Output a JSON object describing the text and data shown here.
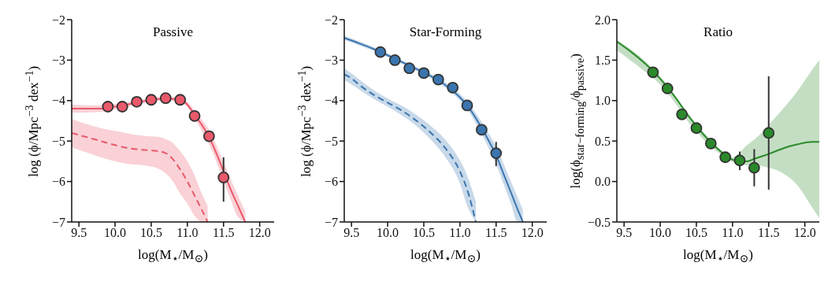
{
  "chart_data": [
    {
      "type": "scatter",
      "title": "Passive",
      "xlabel": "log(M$_{⋆}$/M$_{⊙}$)",
      "ylabel": "log (ϕ/Mpc$^{−3}$ dex$^{−1}$)",
      "xlim": [
        9.4,
        12.2
      ],
      "xticks": [
        9.5,
        {
          "value": 10.0,
          "label": "10.0"
        },
        10.5,
        {
          "value": 11.0,
          "label": "11.0"
        },
        11.5,
        {
          "value": 12.0,
          "label": "12.0"
        }
      ],
      "ylim": [
        -7,
        -2
      ],
      "yticks": [
        {
          "value": -7,
          "label": "−7"
        },
        {
          "value": -6,
          "label": "−6"
        },
        {
          "value": -5,
          "label": "−5"
        },
        {
          "value": -4,
          "label": "−4"
        },
        {
          "value": -3,
          "label": "−3"
        },
        {
          "value": -2,
          "label": "−2"
        }
      ],
      "grid": false,
      "legend": false,
      "series": [
        {
          "type": "line",
          "line_style": "dashed",
          "color": "#e8596b",
          "x": [
            9.4,
            9.6,
            9.8,
            10.0,
            10.2,
            10.4,
            10.6,
            10.7,
            10.8,
            10.9,
            11.0,
            11.1,
            11.2,
            11.28
          ],
          "values": [
            -4.8,
            -4.9,
            -5.0,
            -5.1,
            -5.18,
            -5.22,
            -5.25,
            -5.3,
            -5.45,
            -5.7,
            -6.0,
            -6.35,
            -6.7,
            -7.0
          ],
          "lower": [
            -5.15,
            -5.28,
            -5.4,
            -5.5,
            -5.57,
            -5.6,
            -5.68,
            -5.8,
            -6.0,
            -6.3,
            -6.55,
            -6.85,
            -7.0,
            -7.0
          ],
          "upper": [
            -4.45,
            -4.58,
            -4.68,
            -4.75,
            -4.82,
            -4.87,
            -4.9,
            -4.95,
            -5.05,
            -5.25,
            -5.5,
            -5.85,
            -6.3,
            -6.6
          ]
        },
        {
          "type": "line",
          "line_style": "solid",
          "color": "#e8596b",
          "x": [
            9.4,
            9.8,
            10.0,
            10.3,
            10.5,
            10.7,
            10.9,
            11.0,
            11.1,
            11.2,
            11.3,
            11.4,
            11.5,
            11.6,
            11.7,
            11.8
          ],
          "values": [
            -4.2,
            -4.2,
            -4.15,
            -4.05,
            -3.98,
            -3.95,
            -3.98,
            -4.1,
            -4.35,
            -4.6,
            -4.9,
            -5.3,
            -5.75,
            -6.2,
            -6.6,
            -7.0
          ],
          "lower": [
            -4.3,
            -4.28,
            -4.22,
            -4.1,
            -4.03,
            -4.0,
            -4.04,
            -4.17,
            -4.45,
            -4.75,
            -5.08,
            -5.5,
            -5.98,
            -6.45,
            -6.88,
            -7.0
          ],
          "upper": [
            -4.1,
            -4.12,
            -4.08,
            -4.0,
            -3.93,
            -3.9,
            -3.92,
            -4.03,
            -4.25,
            -4.47,
            -4.72,
            -5.1,
            -5.52,
            -5.95,
            -6.35,
            -6.75
          ]
        },
        {
          "type": "scatter",
          "marker": "circle",
          "color": "#e8596b",
          "x": [
            9.9,
            10.1,
            10.3,
            10.5,
            10.7,
            10.9,
            11.1,
            11.3,
            11.5
          ],
          "values": [
            -4.15,
            -4.15,
            -4.03,
            -3.98,
            -3.94,
            -3.98,
            -4.38,
            -4.88,
            -5.9
          ],
          "errors": [
            null,
            null,
            null,
            null,
            null,
            null,
            null,
            null,
            [
              -6.5,
              -5.4
            ]
          ]
        }
      ]
    },
    {
      "type": "scatter",
      "title": "Star-Forming",
      "xlabel": "log(M$_{⋆}$/M$_{⊙}$)",
      "ylabel": "log (ϕ/Mpc$^{−3}$ dex$^{−1}$)",
      "xlim": [
        9.4,
        12.2
      ],
      "xticks": [
        9.5,
        {
          "value": 10.0,
          "label": "10.0"
        },
        10.5,
        {
          "value": 11.0,
          "label": "11.0"
        },
        11.5,
        {
          "value": 12.0,
          "label": "12.0"
        }
      ],
      "ylim": [
        -7,
        -2
      ],
      "yticks": [
        {
          "value": -7,
          "label": "−7"
        },
        {
          "value": -6,
          "label": "−6"
        },
        {
          "value": -5,
          "label": "−5"
        },
        {
          "value": -4,
          "label": "−4"
        },
        {
          "value": -3,
          "label": "−3"
        },
        {
          "value": -2,
          "label": "−2"
        }
      ],
      "grid": false,
      "legend": false,
      "series": [
        {
          "type": "line",
          "line_style": "solid",
          "color": "#3b75af",
          "x": [
            9.4,
            9.6,
            9.8,
            10.0,
            10.2,
            10.4,
            10.6,
            10.8,
            11.0,
            11.1,
            11.2,
            11.3,
            11.4,
            11.5,
            11.6,
            11.7,
            11.8,
            11.87
          ],
          "values": [
            -2.45,
            -2.58,
            -2.72,
            -2.88,
            -3.05,
            -3.22,
            -3.4,
            -3.62,
            -3.92,
            -4.12,
            -4.38,
            -4.68,
            -5.0,
            -5.35,
            -5.8,
            -6.25,
            -6.7,
            -7.0
          ],
          "lower": [
            -2.5,
            -2.63,
            -2.77,
            -2.93,
            -3.1,
            -3.27,
            -3.46,
            -3.69,
            -4.0,
            -4.22,
            -4.5,
            -4.83,
            -5.18,
            -5.57,
            -6.05,
            -6.52,
            -7.0,
            -7.0
          ],
          "upper": [
            -2.4,
            -2.53,
            -2.67,
            -2.83,
            -3.0,
            -3.17,
            -3.34,
            -3.55,
            -3.84,
            -4.02,
            -4.26,
            -4.53,
            -4.82,
            -5.13,
            -5.55,
            -5.98,
            -6.4,
            -6.7
          ]
        },
        {
          "type": "line",
          "line_style": "dashed",
          "color": "#3b75af",
          "x": [
            9.4,
            9.5,
            9.6,
            9.8,
            10.0,
            10.2,
            10.4,
            10.6,
            10.8,
            11.0,
            11.1,
            11.22
          ],
          "values": [
            -3.35,
            -3.45,
            -3.6,
            -3.85,
            -4.05,
            -4.25,
            -4.5,
            -4.8,
            -5.18,
            -5.75,
            -6.2,
            -7.0
          ],
          "lower": [
            -3.5,
            -3.6,
            -3.72,
            -3.95,
            -4.15,
            -4.37,
            -4.63,
            -4.97,
            -5.4,
            -6.05,
            -6.6,
            -7.0
          ],
          "upper": [
            -3.2,
            -3.33,
            -3.47,
            -3.73,
            -3.95,
            -4.13,
            -4.36,
            -4.63,
            -4.97,
            -5.48,
            -5.85,
            -6.5
          ]
        },
        {
          "type": "scatter",
          "marker": "circle",
          "color": "#3b75af",
          "x": [
            9.9,
            10.1,
            10.3,
            10.5,
            10.7,
            10.9,
            11.1,
            11.3,
            11.5
          ],
          "values": [
            -2.8,
            -3.0,
            -3.2,
            -3.32,
            -3.48,
            -3.68,
            -4.12,
            -4.72,
            -5.3
          ],
          "errors": [
            null,
            null,
            null,
            null,
            null,
            null,
            null,
            null,
            [
              -5.62,
              -5.02
            ]
          ]
        }
      ]
    },
    {
      "type": "scatter",
      "title": "Ratio",
      "xlabel": "log(M$_{⋆}$/M$_{⊙}$)",
      "ylabel": "log(ϕ$_{star−forming}$/ϕ$_{passive}$)",
      "xlim": [
        9.4,
        12.2
      ],
      "xticks": [
        9.5,
        {
          "value": 10.0,
          "label": "10.0"
        },
        10.5,
        {
          "value": 11.0,
          "label": "11.0"
        },
        11.5,
        {
          "value": 12.0,
          "label": "12.0"
        }
      ],
      "ylim": [
        -0.5,
        2.0
      ],
      "yticks": [
        {
          "value": -0.5,
          "label": "−0.5"
        },
        {
          "value": 0.0,
          "label": "0.0"
        },
        0.5,
        {
          "value": 1.0,
          "label": "1.0"
        },
        1.5,
        {
          "value": 2.0,
          "label": "2.0"
        }
      ],
      "grid": false,
      "legend": false,
      "series": [
        {
          "type": "line",
          "line_style": "solid",
          "color": "#2a8a2a",
          "x": [
            9.4,
            9.6,
            9.8,
            10.0,
            10.2,
            10.4,
            10.6,
            10.8,
            10.9,
            11.0,
            11.1,
            11.2,
            11.3,
            11.4,
            11.5,
            11.7,
            11.9,
            12.1,
            12.2
          ],
          "values": [
            1.73,
            1.6,
            1.45,
            1.27,
            1.05,
            0.8,
            0.58,
            0.4,
            0.32,
            0.27,
            0.25,
            0.25,
            0.28,
            0.31,
            0.34,
            0.41,
            0.46,
            0.49,
            0.49
          ],
          "lower": [
            1.62,
            1.49,
            1.35,
            1.2,
            0.98,
            0.72,
            0.52,
            0.36,
            0.29,
            0.24,
            0.22,
            0.2,
            0.2,
            0.19,
            0.17,
            0.1,
            -0.05,
            -0.32,
            -0.45
          ],
          "upper": [
            1.75,
            1.63,
            1.48,
            1.3,
            1.07,
            0.82,
            0.61,
            0.42,
            0.35,
            0.3,
            0.36,
            0.45,
            0.52,
            0.6,
            0.7,
            0.9,
            1.12,
            1.38,
            1.5
          ]
        },
        {
          "type": "scatter",
          "marker": "circle",
          "color": "#2a8a2a",
          "x": [
            9.9,
            10.1,
            10.3,
            10.5,
            10.7,
            10.9,
            11.1,
            11.3,
            11.5
          ],
          "values": [
            1.35,
            1.15,
            0.83,
            0.66,
            0.47,
            0.3,
            0.26,
            0.17,
            0.6
          ],
          "errors": [
            null,
            null,
            null,
            null,
            null,
            null,
            [
              0.14,
              0.37
            ],
            [
              -0.06,
              0.4
            ],
            [
              -0.1,
              1.3
            ]
          ]
        }
      ]
    }
  ]
}
